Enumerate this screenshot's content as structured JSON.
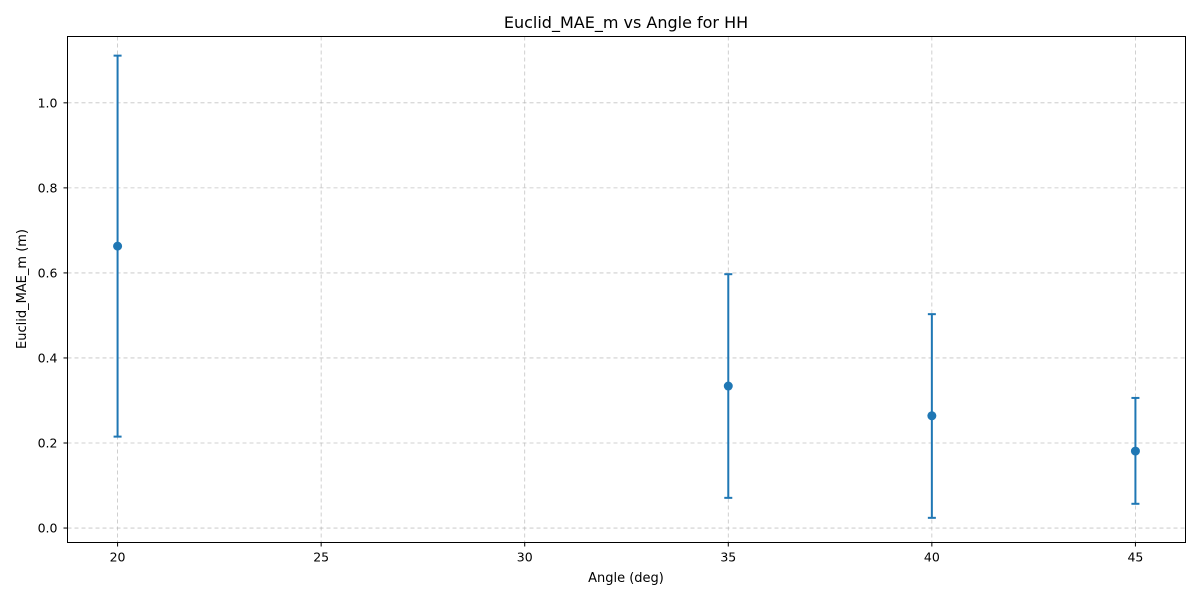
{
  "chart_data": {
    "type": "scatter",
    "title": "Euclid_MAE_m vs Angle for HH",
    "xlabel": "Angle (deg)",
    "ylabel": "Euclid_MAE_m (m)",
    "xlim": [
      18.77,
      46.23
    ],
    "ylim": [
      -0.034,
      1.156
    ],
    "x_ticks": [
      20,
      25,
      30,
      35,
      40,
      45
    ],
    "x_tick_labels": [
      "20",
      "25",
      "30",
      "35",
      "40",
      "45"
    ],
    "y_ticks": [
      0.0,
      0.2,
      0.4,
      0.6,
      0.8,
      1.0
    ],
    "y_tick_labels": [
      "0.0",
      "0.2",
      "0.4",
      "0.6",
      "0.8",
      "1.0"
    ],
    "grid": true,
    "series": [
      {
        "color": "#1f77b4",
        "points": [
          {
            "x": 20,
            "y": 0.663,
            "err_low": 0.215,
            "err_high": 1.111
          },
          {
            "x": 35,
            "y": 0.334,
            "err_low": 0.071,
            "err_high": 0.597
          },
          {
            "x": 40,
            "y": 0.264,
            "err_low": 0.024,
            "err_high": 0.503
          },
          {
            "x": 45,
            "y": 0.181,
            "err_low": 0.057,
            "err_high": 0.306
          }
        ]
      }
    ]
  }
}
